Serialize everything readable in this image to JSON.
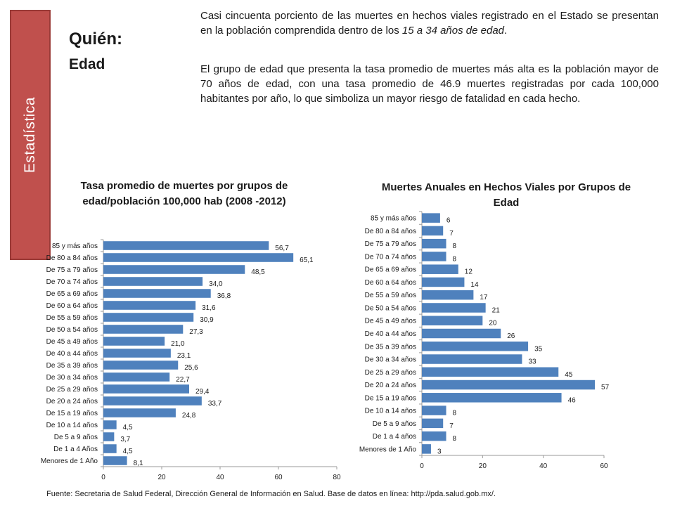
{
  "sidebar": {
    "label": "Estadística"
  },
  "header": {
    "title": "Quién:",
    "subtitle": "Edad"
  },
  "intro": {
    "p1_a": "Casi cincuenta porciento de las muertes en hechos viales registrado en el Estado se presentan en la población comprendida dentro de los ",
    "p1_em": "15 a 34 años de edad",
    "p1_b": ".",
    "p2": "El grupo de edad que presenta la tasa promedio de muertes más alta es la población mayor de 70 años de edad, con una tasa promedio de 46.9 muertes registradas por cada 100,000 habitantes por año, lo que simboliza un mayor riesgo de fatalidad en cada hecho."
  },
  "footer": {
    "text": "Fuente: Secretaria de Salud Federal, Dirección General de Información en Salud.   Base de datos en línea: http://pda.salud.gob.mx/."
  },
  "colors": {
    "bar": "#4f81bd",
    "side_tab": "#c0504d"
  },
  "chart_data": [
    {
      "type": "bar",
      "orientation": "horizontal",
      "title": "Tasa promedio de muertes por grupos de edad/población 100,000 hab (2008 -2012)",
      "categories": [
        "85 y más años",
        "De 80 a 84 años",
        "De 75 a 79 años",
        "De 70 a 74 años",
        "De 65 a 69 años",
        "De 60 a 64 años",
        "De 55 a 59 años",
        "De 50 a 54 años",
        "De 45 a 49 años",
        "De 40 a 44 años",
        "De 35 a 39 años",
        "De 30 a 34 años",
        "De 25 a 29 años",
        "De 20 a 24 años",
        "De 15 a 19 años",
        "De 10 a 14 años",
        "De 5 a 9 años",
        "De 1 a 4 Años",
        "Menores de 1 Año"
      ],
      "values": [
        56.7,
        65.1,
        48.5,
        34.0,
        36.8,
        31.6,
        30.9,
        27.3,
        21.0,
        23.1,
        25.6,
        22.7,
        29.4,
        33.7,
        24.8,
        4.5,
        3.7,
        4.5,
        8.1
      ],
      "value_labels": [
        "56,7",
        "65,1",
        "48,5",
        "34,0",
        "36,8",
        "31,6",
        "30,9",
        "27,3",
        "21,0",
        "23,1",
        "25,6",
        "22,7",
        "29,4",
        "33,7",
        "24,8",
        "4,5",
        "3,7",
        "4,5",
        "8,1"
      ],
      "xlim": [
        0,
        80
      ],
      "xticks": [
        "0",
        "20",
        "40",
        "60",
        "80"
      ],
      "grid": false,
      "legend": "none"
    },
    {
      "type": "bar",
      "orientation": "horizontal",
      "title": "Muertes Anuales en Hechos Viales por Grupos de Edad",
      "categories": [
        "85 y más años",
        "De 80 a 84 años",
        "De 75 a 79 años",
        "De 70 a 74 años",
        "De 65 a 69 años",
        "De 60 a 64 años",
        "De 55 a 59 años",
        "De 50 a 54 años",
        "De 45 a 49 años",
        "De 40 a 44 años",
        "De 35 a 39 años",
        "De 30 a 34 años",
        "De 25 a 29 años",
        "De 20 a 24 años",
        "De 15 a 19 años",
        "De 10 a 14 años",
        "De 5 a 9 años",
        "De 1 a 4 años",
        "Menores de 1 Año"
      ],
      "values": [
        6,
        7,
        8,
        8,
        12,
        14,
        17,
        21,
        20,
        26,
        35,
        33,
        45,
        57,
        46,
        8,
        7,
        8,
        3
      ],
      "value_labels": [
        "6",
        "7",
        "8",
        "8",
        "12",
        "14",
        "17",
        "21",
        "20",
        "26",
        "35",
        "33",
        "45",
        "57",
        "46",
        "8",
        "7",
        "8",
        "3"
      ],
      "xlim": [
        0,
        60
      ],
      "xticks": [
        "0",
        "20",
        "40",
        "60"
      ],
      "grid": false,
      "legend": "none"
    }
  ]
}
